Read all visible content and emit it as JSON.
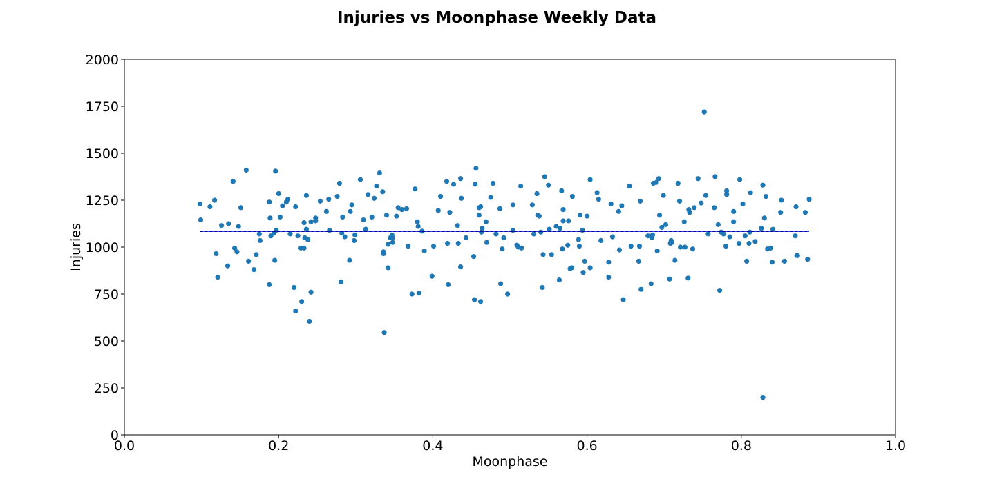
{
  "chart_data": {
    "type": "scatter",
    "title": "Injuries vs Moonphase Weekly Data",
    "xlabel": "Moonphase",
    "ylabel": "Injuries",
    "xlim": [
      0.0,
      1.0
    ],
    "ylim": [
      0,
      2000
    ],
    "xticks": [
      "0.0",
      "0.2",
      "0.4",
      "0.6",
      "0.8",
      "1.0"
    ],
    "yticks": [
      "0",
      "250",
      "500",
      "750",
      "1000",
      "1250",
      "1500",
      "1750",
      "2000"
    ],
    "grid": false,
    "legend": "none",
    "colors": {
      "points": "#1f77b4",
      "trend": "#0000ff"
    },
    "trend_line": {
      "style": "solid with dashed overlay",
      "x": [
        0.098,
        0.888
      ],
      "y": [
        1085,
        1085
      ]
    },
    "points": [
      [
        0.098,
        1230
      ],
      [
        0.099,
        1145
      ],
      [
        0.111,
        1215
      ],
      [
        0.117,
        1250
      ],
      [
        0.119,
        965
      ],
      [
        0.121,
        840
      ],
      [
        0.126,
        1115
      ],
      [
        0.134,
        900
      ],
      [
        0.135,
        1125
      ],
      [
        0.141,
        1350
      ],
      [
        0.143,
        995
      ],
      [
        0.146,
        975
      ],
      [
        0.148,
        1110
      ],
      [
        0.151,
        1210
      ],
      [
        0.158,
        1410
      ],
      [
        0.161,
        925
      ],
      [
        0.168,
        880
      ],
      [
        0.171,
        960
      ],
      [
        0.175,
        1070
      ],
      [
        0.176,
        1035
      ],
      [
        0.188,
        1240
      ],
      [
        0.188,
        800
      ],
      [
        0.189,
        1155
      ],
      [
        0.19,
        1060
      ],
      [
        0.194,
        1075
      ],
      [
        0.195,
        930
      ],
      [
        0.196,
        1405
      ],
      [
        0.197,
        1090
      ],
      [
        0.2,
        1285
      ],
      [
        0.202,
        1160
      ],
      [
        0.205,
        1220
      ],
      [
        0.21,
        1240
      ],
      [
        0.212,
        1255
      ],
      [
        0.215,
        1070
      ],
      [
        0.22,
        785
      ],
      [
        0.222,
        1215
      ],
      [
        0.222,
        660
      ],
      [
        0.225,
        1060
      ],
      [
        0.229,
        995
      ],
      [
        0.23,
        710
      ],
      [
        0.233,
        1130
      ],
      [
        0.233,
        995
      ],
      [
        0.234,
        1050
      ],
      [
        0.236,
        1095
      ],
      [
        0.236,
        1275
      ],
      [
        0.238,
        1040
      ],
      [
        0.24,
        605
      ],
      [
        0.242,
        1135
      ],
      [
        0.242,
        760
      ],
      [
        0.248,
        1155
      ],
      [
        0.248,
        1140
      ],
      [
        0.254,
        1245
      ],
      [
        0.262,
        1190
      ],
      [
        0.265,
        1255
      ],
      [
        0.266,
        1090
      ],
      [
        0.276,
        1270
      ],
      [
        0.279,
        1340
      ],
      [
        0.281,
        815
      ],
      [
        0.282,
        1075
      ],
      [
        0.283,
        1160
      ],
      [
        0.286,
        1055
      ],
      [
        0.292,
        930
      ],
      [
        0.293,
        1190
      ],
      [
        0.295,
        1225
      ],
      [
        0.298,
        1035
      ],
      [
        0.299,
        1065
      ],
      [
        0.306,
        1360
      ],
      [
        0.31,
        1145
      ],
      [
        0.313,
        1095
      ],
      [
        0.316,
        1280
      ],
      [
        0.321,
        1160
      ],
      [
        0.324,
        1260
      ],
      [
        0.327,
        1325
      ],
      [
        0.331,
        1395
      ],
      [
        0.335,
        1295
      ],
      [
        0.336,
        975
      ],
      [
        0.336,
        965
      ],
      [
        0.337,
        545
      ],
      [
        0.34,
        1170
      ],
      [
        0.342,
        890
      ],
      [
        0.342,
        1015
      ],
      [
        0.345,
        1050
      ],
      [
        0.347,
        1065
      ],
      [
        0.348,
        1025
      ],
      [
        0.348,
        1050
      ],
      [
        0.353,
        1165
      ],
      [
        0.355,
        1210
      ],
      [
        0.36,
        1200
      ],
      [
        0.366,
        1205
      ],
      [
        0.368,
        1005
      ],
      [
        0.373,
        750
      ],
      [
        0.377,
        1310
      ],
      [
        0.38,
        1135
      ],
      [
        0.381,
        1110
      ],
      [
        0.382,
        755
      ],
      [
        0.386,
        1085
      ],
      [
        0.389,
        980
      ],
      [
        0.399,
        845
      ],
      [
        0.401,
        1005
      ],
      [
        0.407,
        1195
      ],
      [
        0.41,
        1270
      ],
      [
        0.418,
        1350
      ],
      [
        0.419,
        1020
      ],
      [
        0.42,
        800
      ],
      [
        0.422,
        1185
      ],
      [
        0.427,
        1335
      ],
      [
        0.432,
        1115
      ],
      [
        0.433,
        1020
      ],
      [
        0.436,
        895
      ],
      [
        0.436,
        1365
      ],
      [
        0.437,
        1260
      ],
      [
        0.443,
        1050
      ],
      [
        0.453,
        950
      ],
      [
        0.454,
        720
      ],
      [
        0.455,
        1335
      ],
      [
        0.456,
        1420
      ],
      [
        0.46,
        1210
      ],
      [
        0.46,
        1170
      ],
      [
        0.462,
        1215
      ],
      [
        0.462,
        710
      ],
      [
        0.463,
        1080
      ],
      [
        0.464,
        1100
      ],
      [
        0.469,
        1135
      ],
      [
        0.47,
        1025
      ],
      [
        0.475,
        1265
      ],
      [
        0.478,
        1340
      ],
      [
        0.482,
        1070
      ],
      [
        0.487,
        1205
      ],
      [
        0.488,
        805
      ],
      [
        0.49,
        990
      ],
      [
        0.492,
        1050
      ],
      [
        0.497,
        750
      ],
      [
        0.504,
        1090
      ],
      [
        0.504,
        1225
      ],
      [
        0.509,
        1010
      ],
      [
        0.511,
        1000
      ],
      [
        0.514,
        1325
      ],
      [
        0.515,
        995
      ],
      [
        0.529,
        1225
      ],
      [
        0.531,
        1070
      ],
      [
        0.535,
        1285
      ],
      [
        0.536,
        1170
      ],
      [
        0.538,
        1165
      ],
      [
        0.54,
        1080
      ],
      [
        0.542,
        785
      ],
      [
        0.543,
        960
      ],
      [
        0.545,
        1375
      ],
      [
        0.55,
        1330
      ],
      [
        0.551,
        1095
      ],
      [
        0.554,
        960
      ],
      [
        0.56,
        1110
      ],
      [
        0.564,
        825
      ],
      [
        0.565,
        1100
      ],
      [
        0.567,
        1300
      ],
      [
        0.568,
        990
      ],
      [
        0.569,
        1140
      ],
      [
        0.569,
        1200
      ],
      [
        0.575,
        1010
      ],
      [
        0.576,
        1140
      ],
      [
        0.578,
        885
      ],
      [
        0.58,
        890
      ],
      [
        0.581,
        1270
      ],
      [
        0.589,
        1040
      ],
      [
        0.59,
        1005
      ],
      [
        0.591,
        1170
      ],
      [
        0.594,
        1090
      ],
      [
        0.595,
        865
      ],
      [
        0.597,
        925
      ],
      [
        0.6,
        1165
      ],
      [
        0.604,
        1360
      ],
      [
        0.604,
        890
      ],
      [
        0.613,
        1290
      ],
      [
        0.615,
        1255
      ],
      [
        0.618,
        1035
      ],
      [
        0.628,
        920
      ],
      [
        0.628,
        840
      ],
      [
        0.631,
        1230
      ],
      [
        0.633,
        1055
      ],
      [
        0.641,
        1190
      ],
      [
        0.642,
        985
      ],
      [
        0.645,
        1220
      ],
      [
        0.647,
        720
      ],
      [
        0.655,
        1325
      ],
      [
        0.657,
        1005
      ],
      [
        0.667,
        925
      ],
      [
        0.668,
        1005
      ],
      [
        0.669,
        1245
      ],
      [
        0.67,
        775
      ],
      [
        0.679,
        1060
      ],
      [
        0.683,
        805
      ],
      [
        0.684,
        1050
      ],
      [
        0.685,
        1065
      ],
      [
        0.686,
        1340
      ],
      [
        0.69,
        1345
      ],
      [
        0.691,
        980
      ],
      [
        0.693,
        1365
      ],
      [
        0.694,
        1170
      ],
      [
        0.697,
        1105
      ],
      [
        0.699,
        1275
      ],
      [
        0.702,
        1120
      ],
      [
        0.707,
        830
      ],
      [
        0.708,
        1020
      ],
      [
        0.709,
        1035
      ],
      [
        0.71,
        1025
      ],
      [
        0.714,
        930
      ],
      [
        0.718,
        1340
      ],
      [
        0.72,
        1245
      ],
      [
        0.721,
        1000
      ],
      [
        0.726,
        1135
      ],
      [
        0.727,
        1000
      ],
      [
        0.731,
        835
      ],
      [
        0.732,
        1200
      ],
      [
        0.733,
        1185
      ],
      [
        0.737,
        990
      ],
      [
        0.739,
        1210
      ],
      [
        0.744,
        1365
      ],
      [
        0.748,
        1235
      ],
      [
        0.752,
        1720
      ],
      [
        0.754,
        1275
      ],
      [
        0.757,
        1070
      ],
      [
        0.765,
        1210
      ],
      [
        0.766,
        1375
      ],
      [
        0.77,
        1120
      ],
      [
        0.772,
        770
      ],
      [
        0.774,
        1080
      ],
      [
        0.777,
        1070
      ],
      [
        0.78,
        1005
      ],
      [
        0.781,
        1280
      ],
      [
        0.781,
        1300
      ],
      [
        0.785,
        1055
      ],
      [
        0.79,
        1190
      ],
      [
        0.79,
        1135
      ],
      [
        0.797,
        1020
      ],
      [
        0.798,
        1360
      ],
      [
        0.802,
        1230
      ],
      [
        0.805,
        1060
      ],
      [
        0.807,
        925
      ],
      [
        0.81,
        1020
      ],
      [
        0.811,
        1080
      ],
      [
        0.812,
        1290
      ],
      [
        0.818,
        1030
      ],
      [
        0.826,
        1100
      ],
      [
        0.828,
        200
      ],
      [
        0.828,
        1330
      ],
      [
        0.83,
        1155
      ],
      [
        0.832,
        1270
      ],
      [
        0.834,
        990
      ],
      [
        0.838,
        995
      ],
      [
        0.84,
        920
      ],
      [
        0.841,
        1095
      ],
      [
        0.851,
        1185
      ],
      [
        0.852,
        1250
      ],
      [
        0.856,
        925
      ],
      [
        0.87,
        1060
      ],
      [
        0.871,
        1215
      ],
      [
        0.872,
        955
      ],
      [
        0.873,
        955
      ],
      [
        0.883,
        1185
      ],
      [
        0.886,
        935
      ],
      [
        0.888,
        1255
      ]
    ]
  }
}
